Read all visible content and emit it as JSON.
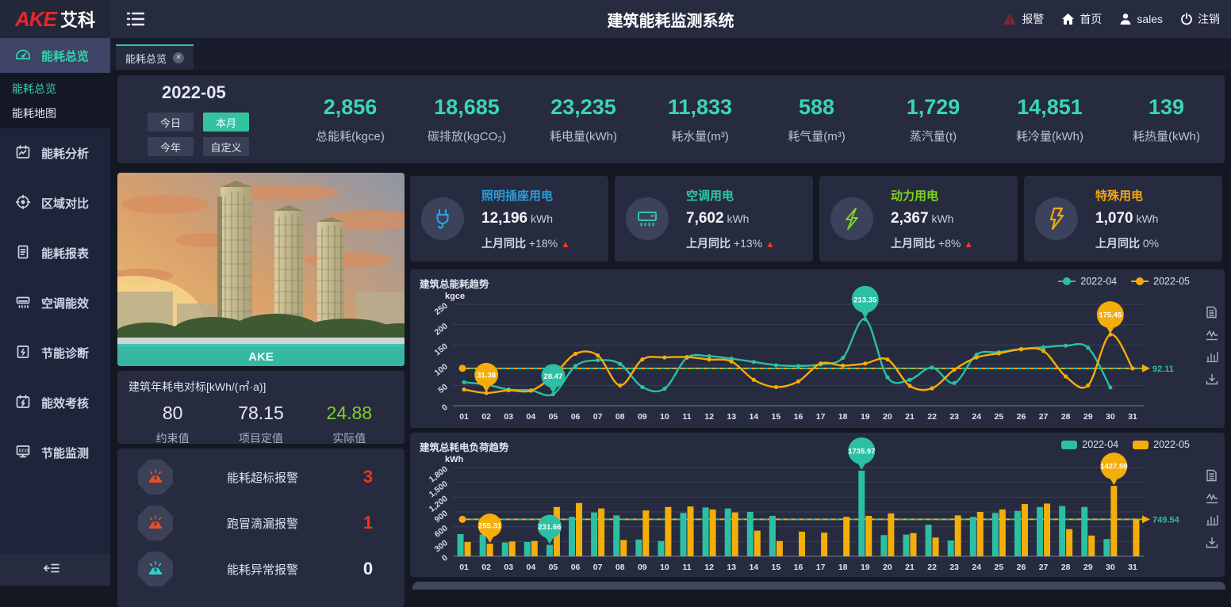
{
  "header": {
    "logo_red": "AKE",
    "logo_cn": "艾科",
    "title": "建筑能耗监测系统",
    "alarm": "报警",
    "home": "首页",
    "user": "sales",
    "logout": "注销"
  },
  "tab": {
    "label": "能耗总览",
    "close": "×"
  },
  "sidebar": {
    "items": [
      {
        "label": "能耗总览"
      },
      {
        "label": "能耗分析"
      },
      {
        "label": "区域对比"
      },
      {
        "label": "能耗报表"
      },
      {
        "label": "空调能效"
      },
      {
        "label": "节能诊断"
      },
      {
        "label": "能效考核"
      },
      {
        "label": "节能监测"
      }
    ],
    "submenu": [
      {
        "label": "能耗总览"
      },
      {
        "label": "能耗地图"
      }
    ]
  },
  "period": {
    "current": "2022-05",
    "buttons": [
      {
        "label": "今日"
      },
      {
        "label": "本月",
        "active": true
      },
      {
        "label": "今年"
      },
      {
        "label": "自定义"
      }
    ]
  },
  "stats": [
    {
      "value": "2,856",
      "label": "总能耗(kgce)"
    },
    {
      "value": "18,685",
      "label": "碳排放(kgCO₂)"
    },
    {
      "value": "23,235",
      "label": "耗电量(kWh)"
    },
    {
      "value": "11,833",
      "label": "耗水量(m³)"
    },
    {
      "value": "588",
      "label": "耗气量(m³)"
    },
    {
      "value": "1,729",
      "label": "蒸汽量(t)"
    },
    {
      "value": "14,851",
      "label": "耗冷量(kWh)"
    },
    {
      "value": "139",
      "label": "耗热量(kWh)"
    }
  ],
  "cards": [
    {
      "title": "照明插座用电",
      "value": "12,196",
      "unit": "kWh",
      "compare_label": "上月同比",
      "compare_value": "+18%",
      "trend_glyph": "▲",
      "color": "#2d9cdb",
      "icon": "plug-icon"
    },
    {
      "title": "空调用电",
      "value": "7,602",
      "unit": "kWh",
      "compare_label": "上月同比",
      "compare_value": "+13%",
      "trend_glyph": "▲",
      "color": "#2ec7a6",
      "icon": "ac-icon"
    },
    {
      "title": "动力用电",
      "value": "2,367",
      "unit": "kWh",
      "compare_label": "上月同比",
      "compare_value": "+8%",
      "trend_glyph": "▲",
      "color": "#7ed321",
      "icon": "power-bolt-icon"
    },
    {
      "title": "特殊用电",
      "value": "1,070",
      "unit": "kWh",
      "compare_label": "上月同比",
      "compare_value": "0%",
      "trend_glyph": "",
      "color": "#f0a818",
      "icon": "special-bolt-icon"
    }
  ],
  "building": {
    "caption": "AKE"
  },
  "benchmark": {
    "title": "建筑年耗电对标[kWh/(㎡·a)]",
    "items": [
      {
        "value": "80",
        "label": "约束值"
      },
      {
        "value": "78.15",
        "label": "项目定值"
      },
      {
        "value": "24.88",
        "label": "实际值"
      }
    ]
  },
  "alarms": [
    {
      "label": "能耗超标报警",
      "count": "3"
    },
    {
      "label": "跑冒滴漏报警",
      "count": "1"
    },
    {
      "label": "能耗异常报警",
      "count": "0"
    }
  ],
  "chart_data": [
    {
      "type": "line",
      "title": "建筑总能耗趋势",
      "ylabel": "kgce",
      "x": [
        "01",
        "02",
        "03",
        "04",
        "05",
        "06",
        "07",
        "08",
        "09",
        "10",
        "11",
        "12",
        "13",
        "14",
        "15",
        "16",
        "17",
        "18",
        "19",
        "20",
        "21",
        "22",
        "23",
        "24",
        "25",
        "26",
        "27",
        "28",
        "29",
        "30",
        "31"
      ],
      "ylim": [
        0,
        250
      ],
      "yticks": [
        0,
        50,
        100,
        150,
        200,
        250
      ],
      "grid": true,
      "legend_position": "top-right",
      "series": [
        {
          "name": "2022-04",
          "color": "#2bbfa3",
          "values": [
            58,
            52,
            40,
            38,
            28.47,
            98,
            112,
            103,
            46,
            42,
            118,
            122,
            116,
            108,
            100,
            98,
            102,
            118,
            213.35,
            70,
            64,
            94,
            56,
            126,
            132,
            140,
            144,
            148,
            143,
            45,
            null
          ]
        },
        {
          "name": "2022-05",
          "color": "#f5ad0a",
          "values": [
            40,
            31.38,
            38,
            37,
            74,
            128,
            124,
            50,
            114,
            119,
            120,
            114,
            109,
            64,
            46,
            60,
            104,
            99,
            104,
            114,
            49,
            43,
            89,
            119,
            129,
            139,
            135,
            72,
            50,
            175.45,
            92
          ]
        }
      ],
      "markers": [
        {
          "series": 0,
          "x": "05",
          "value": 28.47,
          "label": "28.47",
          "kind": "min"
        },
        {
          "series": 0,
          "x": "19",
          "value": 213.35,
          "label": "213.35",
          "kind": "max"
        },
        {
          "series": 1,
          "x": "02",
          "value": 31.38,
          "label": "31.38",
          "kind": "min"
        },
        {
          "series": 1,
          "x": "30",
          "value": 175.45,
          "label": "175.45",
          "kind": "max"
        }
      ],
      "average": {
        "value": 92.11,
        "label": "92.11"
      }
    },
    {
      "type": "bar",
      "title": "建筑总耗电负荷趋势",
      "ylabel": "kWh",
      "x": [
        "01",
        "02",
        "03",
        "04",
        "05",
        "06",
        "07",
        "08",
        "09",
        "10",
        "11",
        "12",
        "13",
        "14",
        "15",
        "16",
        "17",
        "18",
        "19",
        "20",
        "21",
        "22",
        "23",
        "24",
        "25",
        "26",
        "27",
        "28",
        "29",
        "30",
        "31"
      ],
      "ylim": [
        0,
        1800
      ],
      "yticks": [
        0,
        300,
        600,
        900,
        1200,
        1500,
        1800
      ],
      "grid": true,
      "legend_position": "top-right",
      "series": [
        {
          "name": "2022-04",
          "color": "#2bbfa3",
          "values": [
            450,
            440,
            280,
            290,
            231.66,
            800,
            890,
            830,
            340,
            310,
            880,
            990,
            970,
            900,
            820,
            null,
            null,
            null,
            1735.97,
            430,
            440,
            640,
            320,
            800,
            880,
            920,
            1000,
            1020,
            1000,
            350,
            null
          ]
        },
        {
          "name": "2022-05",
          "color": "#f5ad0a",
          "values": [
            290,
            255.31,
            300,
            310,
            1000,
            1080,
            970,
            330,
            930,
            1000,
            1010,
            950,
            890,
            520,
            310,
            500,
            480,
            800,
            820,
            870,
            470,
            380,
            830,
            900,
            950,
            1060,
            1070,
            550,
            420,
            1427.59,
            750
          ]
        }
      ],
      "markers": [
        {
          "series": 0,
          "x": "05",
          "value": 231.66,
          "label": "231.66",
          "kind": "min"
        },
        {
          "series": 0,
          "x": "19",
          "value": 1735.97,
          "label": "1735.97",
          "kind": "max"
        },
        {
          "series": 1,
          "x": "02",
          "value": 255.31,
          "label": "255.31",
          "kind": "min"
        },
        {
          "series": 1,
          "x": "30",
          "value": 1427.59,
          "label": "1427.59",
          "kind": "max"
        }
      ],
      "average": {
        "value": 749.54,
        "label": "749.54"
      }
    }
  ]
}
